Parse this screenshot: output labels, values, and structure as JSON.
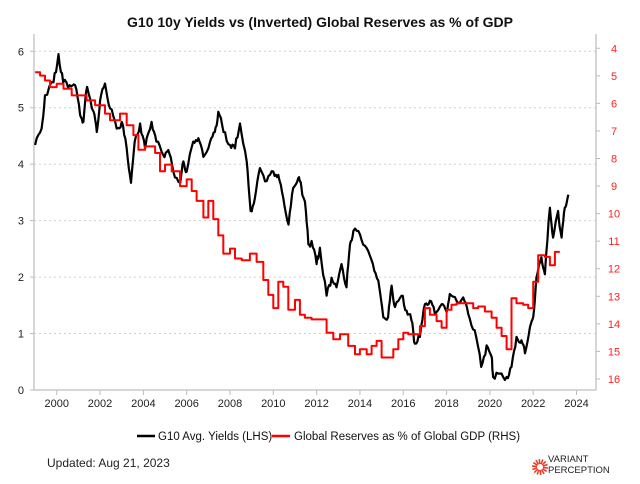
{
  "chart_data": {
    "type": "line",
    "title": "G10 10y Yields vs (Inverted) Global Reserves as % of GDP",
    "xlim": [
      1998.95,
      2024.9
    ],
    "x_ticks": [
      2000,
      2002,
      2004,
      2006,
      2008,
      2010,
      2012,
      2014,
      2016,
      2018,
      2020,
      2022,
      2024
    ],
    "y_left": {
      "lim": [
        0,
        6.2
      ],
      "ticks": [
        0,
        1,
        2,
        3,
        4,
        5,
        6
      ]
    },
    "y_right": {
      "lim": [
        3.7,
        16.4
      ],
      "ticks": [
        4,
        5,
        6,
        7,
        8,
        9,
        10,
        11,
        12,
        13,
        14,
        15,
        16
      ],
      "inverted": true,
      "color": "#ff2020"
    },
    "grid": "horizontal dotted",
    "legend_position": "bottom",
    "series": [
      {
        "name": "G10 Avg. Yields (LHS)",
        "axis": "left",
        "color": "#000000",
        "step": false,
        "x": [
          1999.0,
          1999.3,
          1999.46,
          1999.85,
          2000.08,
          2000.3,
          2000.6,
          2000.85,
          2001.08,
          2001.23,
          2001.4,
          2001.7,
          2001.85,
          2002.0,
          2002.23,
          2002.46,
          2002.77,
          2003.0,
          2003.23,
          2003.43,
          2003.6,
          2003.85,
          2004.08,
          2004.38,
          2004.6,
          2004.92,
          2005.15,
          2005.38,
          2005.7,
          2005.85,
          2006.0,
          2006.3,
          2006.54,
          2006.77,
          2007.08,
          2007.3,
          2007.46,
          2007.7,
          2008.0,
          2008.23,
          2008.46,
          2008.77,
          2008.95,
          2009.15,
          2009.38,
          2009.7,
          2010.0,
          2010.23,
          2010.46,
          2010.7,
          2010.92,
          2011.15,
          2011.3,
          2011.46,
          2011.62,
          2011.77,
          2012.0,
          2012.15,
          2012.46,
          2012.69,
          2012.92,
          2013.15,
          2013.38,
          2013.54,
          2013.7,
          2014.0,
          2014.3,
          2014.6,
          2014.85,
          2015.08,
          2015.3,
          2015.46,
          2015.62,
          2015.92,
          2016.15,
          2016.38,
          2016.54,
          2016.77,
          2017.0,
          2017.23,
          2017.46,
          2017.77,
          2018.0,
          2018.15,
          2018.46,
          2018.77,
          2019.0,
          2019.3,
          2019.6,
          2019.85,
          2020.08,
          2020.15,
          2020.46,
          2020.77,
          2021.0,
          2021.23,
          2021.46,
          2021.62,
          2021.85,
          2022.0,
          2022.15,
          2022.38,
          2022.54,
          2022.77,
          2022.92,
          2023.15,
          2023.31,
          2023.46,
          2023.62
        ],
        "y": [
          4.34,
          4.63,
          5.22,
          5.45,
          5.95,
          5.45,
          5.4,
          5.4,
          4.87,
          4.75,
          5.37,
          4.93,
          4.57,
          5.13,
          5.43,
          4.99,
          4.63,
          4.75,
          4.28,
          3.67,
          4.4,
          4.72,
          4.28,
          4.75,
          4.4,
          4.16,
          4.25,
          3.87,
          3.67,
          4.05,
          3.87,
          4.4,
          4.46,
          4.13,
          4.4,
          4.57,
          4.93,
          4.57,
          4.34,
          4.28,
          4.72,
          4.05,
          3.17,
          3.4,
          3.93,
          3.7,
          3.87,
          3.81,
          3.4,
          2.93,
          3.58,
          3.75,
          3.58,
          3.34,
          2.58,
          2.64,
          2.23,
          2.52,
          1.67,
          1.99,
          1.82,
          2.23,
          1.82,
          2.58,
          2.82,
          2.76,
          2.52,
          2.23,
          1.94,
          1.29,
          1.29,
          1.85,
          1.47,
          1.67,
          1.41,
          1.23,
          0.82,
          0.94,
          1.52,
          1.58,
          1.35,
          1.52,
          1.38,
          1.7,
          1.58,
          1.64,
          1.35,
          1.06,
          0.41,
          0.79,
          0.59,
          0.23,
          0.29,
          0.23,
          0.41,
          0.94,
          0.88,
          0.65,
          1.11,
          1.29,
          1.99,
          2.35,
          2.05,
          3.23,
          2.7,
          3.17,
          2.7,
          3.23,
          3.46
        ]
      },
      {
        "name": "Global Reserves as % of Global GDP (RHS)",
        "axis": "right",
        "color": "#ff0000",
        "step": true,
        "x": [
          1999.0,
          1999.23,
          1999.46,
          1999.69,
          2000.0,
          2000.31,
          2000.69,
          2001.38,
          2001.77,
          2002.23,
          2002.46,
          2002.92,
          2003.23,
          2003.54,
          2003.77,
          2004.08,
          2004.54,
          2004.77,
          2005.0,
          2005.31,
          2005.69,
          2006.0,
          2006.23,
          2006.46,
          2006.77,
          2007.0,
          2007.23,
          2007.46,
          2007.69,
          2008.0,
          2008.23,
          2008.54,
          2008.92,
          2009.23,
          2009.54,
          2009.77,
          2010.0,
          2010.23,
          2010.46,
          2010.69,
          2011.0,
          2011.23,
          2011.46,
          2011.77,
          2012.46,
          2012.77,
          2013.08,
          2013.46,
          2013.77,
          2014.0,
          2014.31,
          2014.54,
          2014.77,
          2015.0,
          2015.54,
          2015.77,
          2016.0,
          2016.23,
          2016.77,
          2017.0,
          2017.23,
          2017.54,
          2017.77,
          2018.0,
          2018.23,
          2018.46,
          2019.23,
          2019.46,
          2019.77,
          2020.08,
          2020.31,
          2020.54,
          2020.77,
          2021.0,
          2021.23,
          2021.54,
          2021.77,
          2022.0,
          2022.23,
          2022.54,
          2022.77,
          2023.0,
          2023.23
        ],
        "y": [
          4.87,
          4.99,
          5.17,
          5.41,
          5.29,
          5.47,
          5.71,
          5.89,
          6.07,
          6.37,
          6.61,
          6.37,
          6.79,
          7.15,
          7.68,
          7.56,
          7.8,
          8.46,
          8.22,
          8.46,
          9.0,
          8.76,
          9.18,
          9.54,
          10.14,
          9.54,
          10.2,
          10.79,
          11.45,
          11.27,
          11.63,
          11.69,
          11.45,
          11.75,
          12.41,
          12.95,
          13.43,
          12.47,
          12.65,
          13.49,
          13.13,
          13.67,
          13.78,
          13.84,
          14.32,
          14.56,
          14.38,
          14.8,
          15.1,
          14.92,
          15.1,
          14.8,
          14.62,
          15.22,
          14.92,
          14.56,
          14.32,
          14.38,
          14.08,
          13.43,
          13.67,
          13.9,
          14.14,
          13.49,
          13.31,
          13.25,
          13.43,
          13.37,
          13.55,
          13.78,
          14.14,
          14.44,
          14.92,
          13.07,
          13.25,
          13.31,
          13.43,
          12.47,
          11.51,
          11.57,
          11.87,
          11.39,
          11.39
        ]
      }
    ]
  },
  "footer": {
    "updated": "Updated: Aug 21, 2023",
    "logo_line1": "VARIANT",
    "logo_line2": "PERCEPTION",
    "logo_color": "#e8402a"
  }
}
